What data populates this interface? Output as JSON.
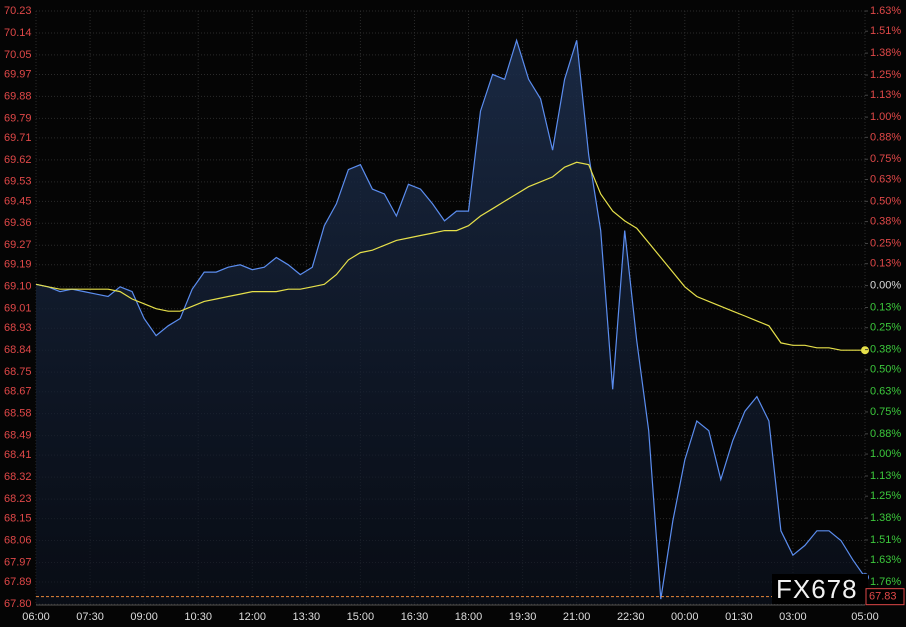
{
  "chart_data": {
    "type": "line",
    "x": [
      0,
      20,
      40,
      60,
      80,
      100,
      120,
      140,
      160,
      180,
      200,
      220,
      240,
      260,
      280,
      300,
      320,
      340,
      360,
      380,
      400,
      420,
      440,
      460,
      480,
      500,
      520,
      540,
      560,
      580,
      600,
      620,
      640,
      660,
      680,
      700,
      720,
      740,
      760,
      780,
      800,
      820,
      840,
      860,
      880,
      900,
      920,
      940,
      960,
      980,
      1000,
      1020,
      1040,
      1060,
      1080,
      1100,
      1120,
      1140,
      1160,
      1180,
      1200,
      1220,
      1240,
      1260,
      1280,
      1300,
      1320,
      1340,
      1360,
      1380
    ],
    "series": [
      {
        "color": "#5b8def",
        "fill": true,
        "values": [
          69.11,
          69.1,
          69.08,
          69.09,
          69.08,
          69.07,
          69.06,
          69.1,
          69.08,
          68.97,
          68.9,
          68.94,
          68.97,
          69.09,
          69.16,
          69.16,
          69.18,
          69.19,
          69.17,
          69.18,
          69.22,
          69.19,
          69.15,
          69.18,
          69.35,
          69.44,
          69.58,
          69.6,
          69.5,
          69.48,
          69.39,
          69.52,
          69.5,
          69.44,
          69.37,
          69.41,
          69.41,
          69.82,
          69.97,
          69.95,
          70.11,
          69.95,
          69.87,
          69.66,
          69.95,
          70.11,
          69.64,
          69.33,
          68.68,
          69.33,
          68.88,
          68.51,
          67.82,
          68.14,
          68.39,
          68.55,
          68.51,
          68.31,
          68.47,
          68.59,
          68.65,
          68.55,
          68.1,
          68.0,
          68.04,
          68.1,
          68.1,
          68.06,
          67.98,
          67.91
        ]
      },
      {
        "color": "#e6e04a",
        "fill": false,
        "values": [
          69.11,
          69.1,
          69.09,
          69.09,
          69.09,
          69.09,
          69.09,
          69.08,
          69.05,
          69.03,
          69.01,
          69.0,
          69.0,
          69.02,
          69.04,
          69.05,
          69.06,
          69.07,
          69.08,
          69.08,
          69.08,
          69.09,
          69.09,
          69.1,
          69.11,
          69.15,
          69.21,
          69.24,
          69.25,
          69.27,
          69.29,
          69.3,
          69.31,
          69.32,
          69.33,
          69.33,
          69.35,
          69.39,
          69.42,
          69.45,
          69.48,
          69.51,
          69.53,
          69.55,
          69.59,
          69.61,
          69.6,
          69.48,
          69.41,
          69.37,
          69.34,
          69.28,
          69.22,
          69.16,
          69.1,
          69.06,
          69.04,
          69.02,
          69.0,
          68.98,
          68.96,
          68.94,
          68.87,
          68.86,
          68.86,
          68.85,
          68.85,
          68.84,
          68.84,
          68.84
        ]
      }
    ],
    "xlim": [
      0,
      1380
    ],
    "xticks": [
      {
        "value": 0,
        "label": "06:00"
      },
      {
        "value": 90,
        "label": "07:30"
      },
      {
        "value": 180,
        "label": "09:00"
      },
      {
        "value": 270,
        "label": "10:30"
      },
      {
        "value": 360,
        "label": "12:00"
      },
      {
        "value": 450,
        "label": "13:30"
      },
      {
        "value": 540,
        "label": "15:00"
      },
      {
        "value": 630,
        "label": "16:30"
      },
      {
        "value": 720,
        "label": "18:00"
      },
      {
        "value": 810,
        "label": "19:30"
      },
      {
        "value": 900,
        "label": "21:00"
      },
      {
        "value": 990,
        "label": "22:30"
      },
      {
        "value": 1080,
        "label": "00:00"
      },
      {
        "value": 1170,
        "label": "01:30"
      },
      {
        "value": 1260,
        "label": "03:00"
      },
      {
        "value": 1380,
        "label": "05:00"
      }
    ],
    "ylim": [
      67.8,
      70.23
    ],
    "yticks": [
      70.23,
      70.14,
      70.05,
      69.97,
      69.88,
      69.79,
      69.71,
      69.62,
      69.53,
      69.45,
      69.36,
      69.27,
      69.19,
      {
        "value": 69.1,
        "label": "69.10"
      },
      69.01,
      68.93,
      68.84,
      68.75,
      68.67,
      68.58,
      68.49,
      68.41,
      68.32,
      68.23,
      68.15,
      68.06,
      67.97,
      67.89,
      {
        "value": 67.8,
        "label": "67.80"
      }
    ],
    "y2lim": [
      -1.89,
      1.63
    ],
    "y2ticks": [
      {
        "value": 1.63,
        "label": "1.63%"
      },
      {
        "value": 1.51,
        "label": "1.51%"
      },
      {
        "value": 1.38,
        "label": "1.38%"
      },
      {
        "value": 1.25,
        "label": "1.25%"
      },
      {
        "value": 1.13,
        "label": "1.13%"
      },
      {
        "value": 1.0,
        "label": "1.00%"
      },
      {
        "value": 0.88,
        "label": "0.88%"
      },
      {
        "value": 0.75,
        "label": "0.75%"
      },
      {
        "value": 0.63,
        "label": "0.63%"
      },
      {
        "value": 0.5,
        "label": "0.50%"
      },
      {
        "value": 0.38,
        "label": "0.38%"
      },
      {
        "value": 0.25,
        "label": "0.25%"
      },
      {
        "value": 0.13,
        "label": "0.13%"
      },
      {
        "value": 0,
        "label": "0.00%"
      },
      {
        "value": -0.13,
        "label": "0.13%"
      },
      {
        "value": -0.25,
        "label": "0.25%"
      },
      {
        "value": -0.38,
        "label": "0.38%"
      },
      {
        "value": -0.5,
        "label": "0.50%"
      },
      {
        "value": -0.63,
        "label": "0.63%"
      },
      {
        "value": -0.75,
        "label": "0.75%"
      },
      {
        "value": -0.88,
        "label": "0.88%"
      },
      {
        "value": -1.0,
        "label": "1.00%"
      },
      {
        "value": -1.13,
        "label": "1.13%"
      },
      {
        "value": -1.25,
        "label": "1.25%"
      },
      {
        "value": -1.38,
        "label": "1.38%"
      },
      {
        "value": -1.51,
        "label": "1.51%"
      },
      {
        "value": -1.63,
        "label": "1.63%"
      },
      {
        "value": -1.76,
        "label": "1.76%"
      }
    ],
    "current_price": 67.83,
    "watermark": "FX678",
    "grid": true
  }
}
